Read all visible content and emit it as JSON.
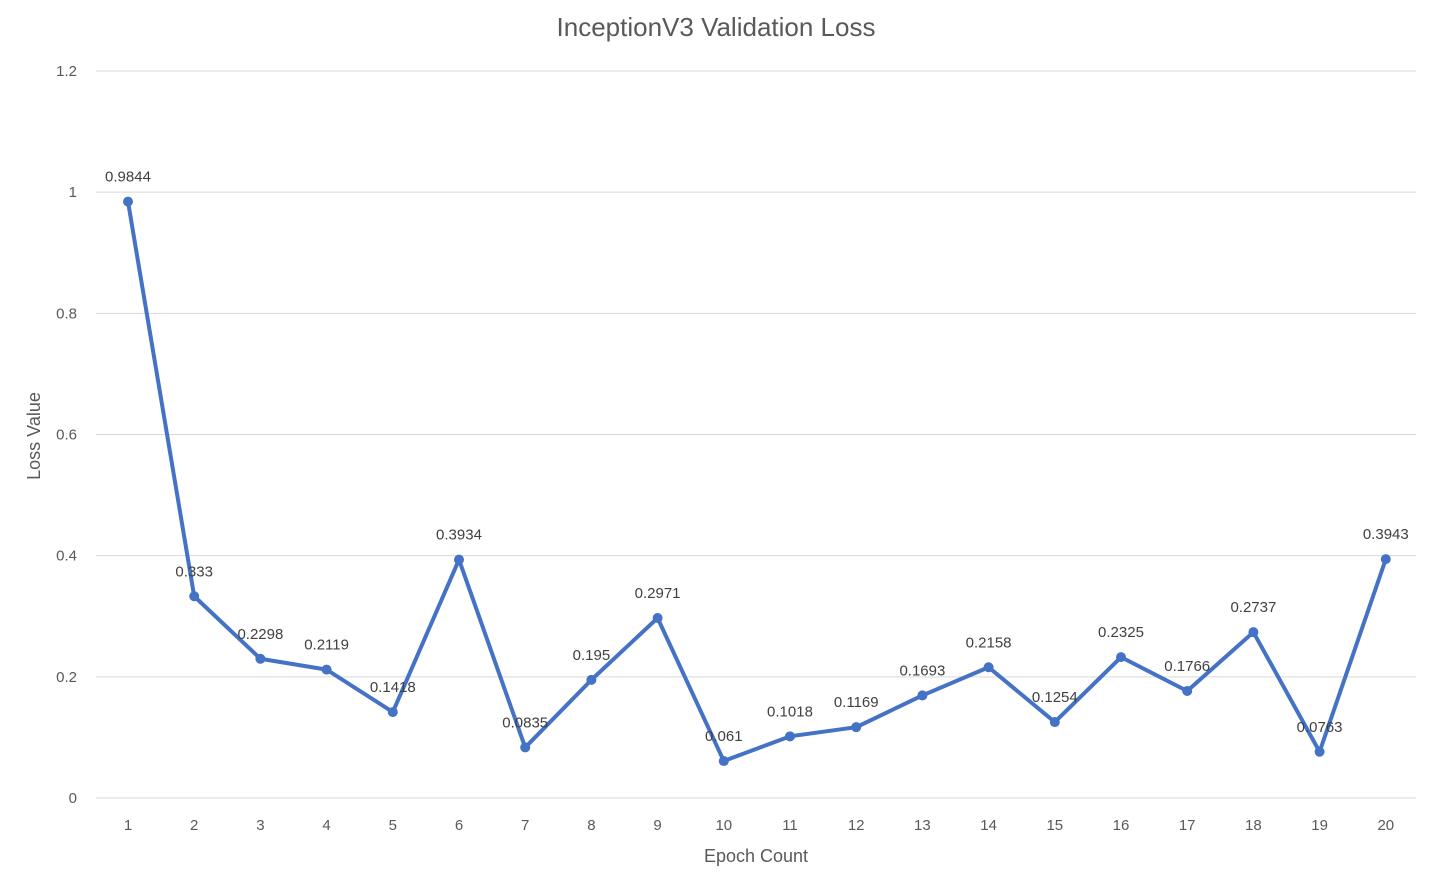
{
  "chart_data": {
    "type": "line",
    "title": "InceptionV3 Validation Loss",
    "xlabel": "Epoch Count",
    "ylabel": "Loss Value",
    "categories": [
      "1",
      "2",
      "3",
      "4",
      "5",
      "6",
      "7",
      "8",
      "9",
      "10",
      "11",
      "12",
      "13",
      "14",
      "15",
      "16",
      "17",
      "18",
      "19",
      "20"
    ],
    "series": [
      {
        "values": [
          0.9844,
          0.333,
          0.2298,
          0.2119,
          0.1418,
          0.3934,
          0.0835,
          0.195,
          0.2971,
          0.061,
          0.1018,
          0.1169,
          0.1693,
          0.2158,
          0.1254,
          0.2325,
          0.1766,
          0.2737,
          0.0763,
          0.3943
        ],
        "color": "#4472c4"
      }
    ],
    "data_labels": [
      "0.9844",
      "0.333",
      "0.2298",
      "0.2119",
      "0.1418",
      "0.3934",
      "0.0835",
      "0.195",
      "0.2971",
      "0.061",
      "0.1018",
      "0.1169",
      "0.1693",
      "0.2158",
      "0.1254",
      "0.2325",
      "0.1766",
      "0.2737",
      "0.0763",
      "0.3943"
    ],
    "ylim": [
      0,
      1.2
    ],
    "yticks": [
      "0",
      "0.2",
      "0.4",
      "0.6",
      "0.8",
      "1",
      "1.2"
    ],
    "grid": true,
    "legend": "none"
  }
}
